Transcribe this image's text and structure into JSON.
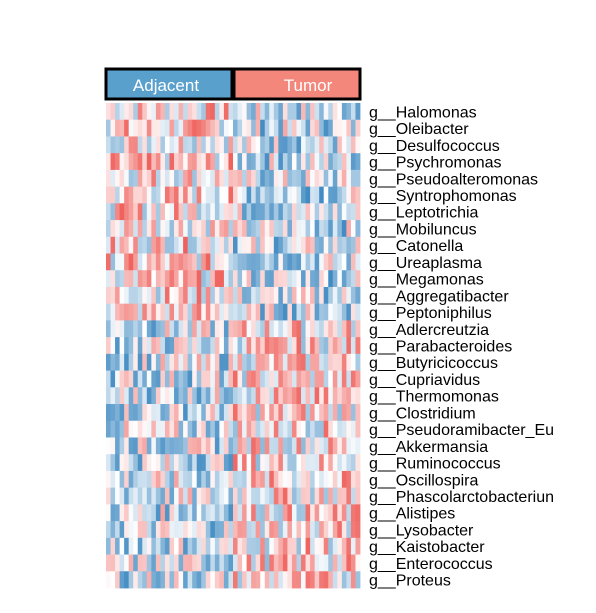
{
  "chart_data": {
    "type": "heatmap",
    "column_groups": [
      {
        "label": "Adjacent",
        "color": "#5aa0cc",
        "n_samples": 28
      },
      {
        "label": "Tumor",
        "color": "#f4877b",
        "n_samples": 28
      }
    ],
    "row_labels": [
      "g__Halomonas",
      "g__Oleibacter",
      "g__Desulfococcus",
      "g__Psychromonas",
      "g__Pseudoalteromonas",
      "g__Syntrophomonas",
      "g__Leptotrichia",
      "g__Mobiluncus",
      "g__Catonella",
      "g__Ureaplasma",
      "g__Megamonas",
      "g__Aggregatibacter",
      "g__Peptoniphilus",
      "g__Adlercreutzia",
      "g__Parabacteroides",
      "g__Butyricicoccus",
      "g__Cupriavidus",
      "g__Thermomonas",
      "g__Clostridium",
      "g__Pseudoramibacter_Eu",
      "g__Akkermansia",
      "g__Ruminococcus",
      "g__Oscillospira",
      "g__Phascolarctobacteriun",
      "g__Alistipes",
      "g__Lysobacter",
      "g__Kaistobacter",
      "g__Enterococcus",
      "g__Proteus"
    ],
    "color_scale": {
      "low": "#3a87c0",
      "mid": "#ffffff",
      "high": "#ee5a55",
      "range": [
        -1,
        1
      ]
    },
    "values_note_seed": 7
  }
}
